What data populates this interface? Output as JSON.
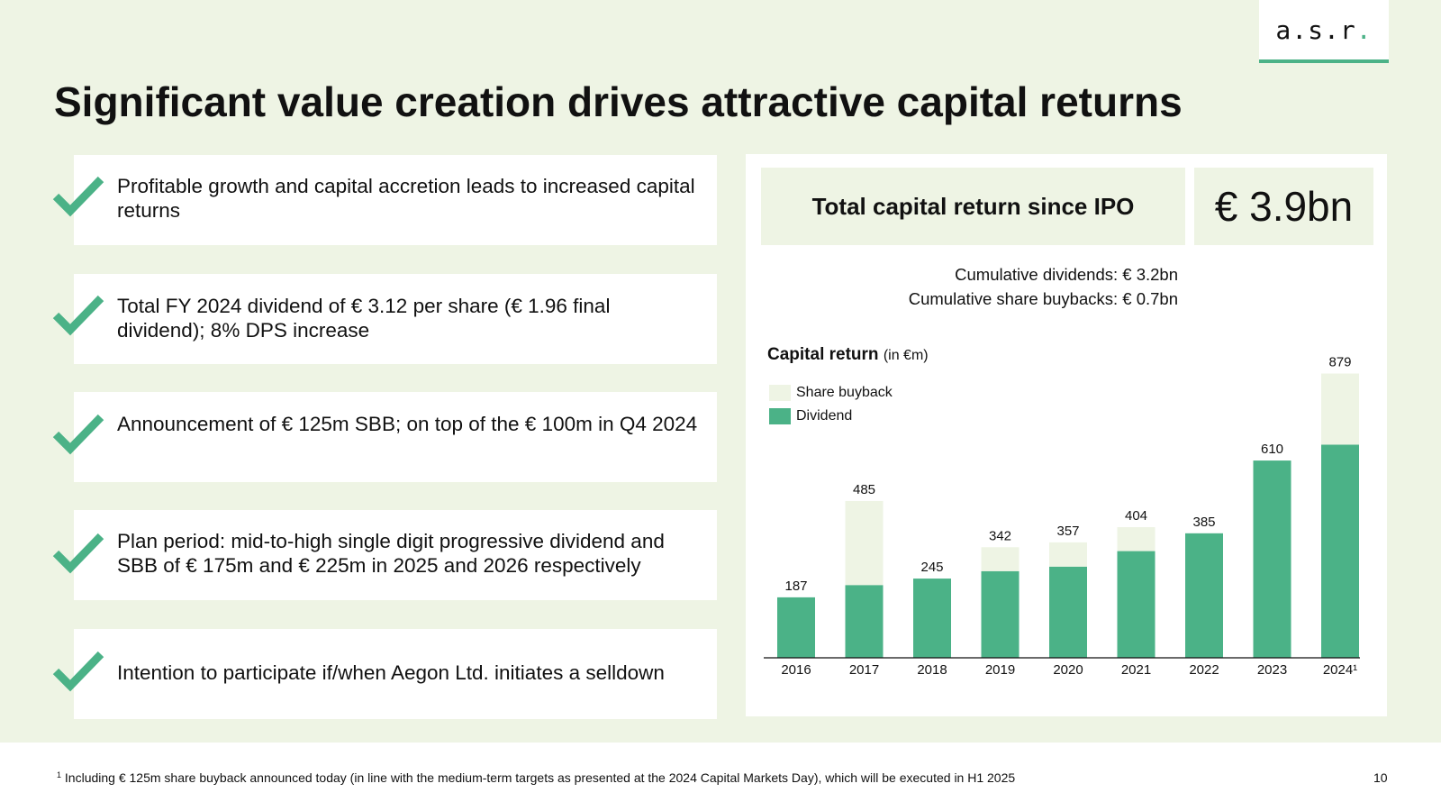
{
  "logo": {
    "text": "a.s.r",
    "dot": "."
  },
  "title": "Significant value creation drives attractive capital returns",
  "bullets": [
    "Profitable growth and capital accretion leads to increased capital returns",
    "Total FY 2024 dividend of € 3.12 per share (€ 1.96 final dividend); 8% DPS increase",
    "Announcement of € 125m SBB; on top of the € 100m in Q4 2024",
    "Plan period: mid-to-high single digit progressive dividend and SBB of € 175m and € 225m in 2025 and 2026 respectively",
    "Intention to participate if/when Aegon Ltd. initiates a selldown"
  ],
  "kpi": {
    "label": "Total capital return since IPO",
    "value": "€ 3.9bn"
  },
  "cumulative": {
    "dividends": "Cumulative dividends: € 3.2bn",
    "buybacks": "Cumulative share buybacks: € 0.7bn"
  },
  "colors": {
    "dividend": "#4bb287",
    "buyback": "#eef4e4",
    "check": "#4bb287",
    "background": "#eef4e4"
  },
  "icons": {
    "bullet": "check-icon"
  },
  "chart_data": {
    "type": "bar",
    "stacked": true,
    "title": "Capital return",
    "title_unit": "(in €m)",
    "categories": [
      "2016",
      "2017",
      "2018",
      "2019",
      "2020",
      "2021",
      "2022",
      "2023",
      "2024¹"
    ],
    "series": [
      {
        "name": "Dividend",
        "values": [
          187,
          225,
          245,
          268,
          282,
          330,
          385,
          610,
          659
        ]
      },
      {
        "name": "Share buyback",
        "values": [
          0,
          260,
          0,
          74,
          75,
          74,
          0,
          0,
          220
        ]
      }
    ],
    "totals": [
      187,
      485,
      245,
      342,
      357,
      404,
      385,
      610,
      879
    ],
    "ylim": [
      0,
      900
    ],
    "legend_position": "top-left",
    "legend_order": [
      "Share buyback",
      "Dividend"
    ],
    "grid": false
  },
  "footnote": {
    "marker": "1",
    "text": "Including € 125m share buyback announced today (in line with the medium-term targets as presented at the 2024 Capital Markets Day), which will be executed in H1 2025"
  },
  "page_number": "10"
}
